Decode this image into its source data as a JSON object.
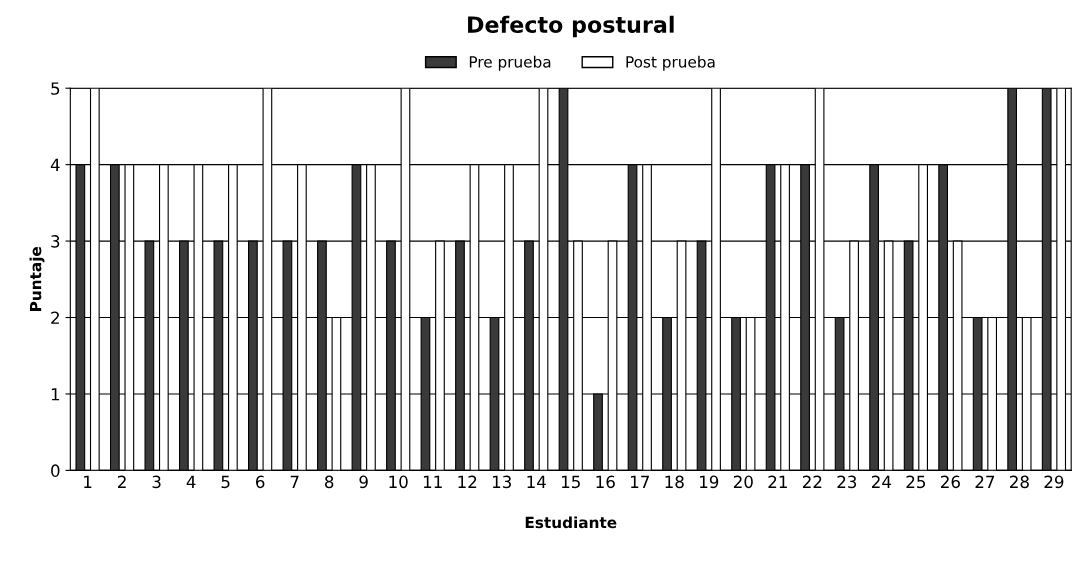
{
  "chart_data": {
    "type": "bar",
    "title": "Defecto postural",
    "xlabel": "Estudiante",
    "ylabel": "Puntaje",
    "categories": [
      "1",
      "2",
      "3",
      "4",
      "5",
      "6",
      "7",
      "8",
      "9",
      "10",
      "11",
      "12",
      "13",
      "14",
      "15",
      "16",
      "17",
      "18",
      "19",
      "20",
      "21",
      "22",
      "23",
      "24",
      "25",
      "26",
      "27",
      "28",
      "29"
    ],
    "series": [
      {
        "name": "Pre prueba",
        "color": "#3a3a3a",
        "values": [
          4,
          4,
          3,
          3,
          3,
          3,
          3,
          3,
          4,
          3,
          2,
          3,
          2,
          3,
          5,
          1,
          4,
          2,
          3,
          2,
          4,
          4,
          2,
          4,
          3,
          4,
          2,
          5,
          5
        ]
      },
      {
        "name": "Post prueba",
        "color": "#ffffff",
        "values": [
          5,
          4,
          4,
          4,
          4,
          5,
          4,
          2,
          4,
          5,
          3,
          4,
          4,
          5,
          3,
          3,
          4,
          3,
          5,
          2,
          4,
          5,
          3,
          3,
          4,
          3,
          2,
          2,
          5
        ]
      }
    ],
    "ylim": [
      0,
      5
    ],
    "yticks": [
      0,
      1,
      2,
      3,
      4,
      5
    ],
    "grid": "y",
    "legend": "top"
  }
}
